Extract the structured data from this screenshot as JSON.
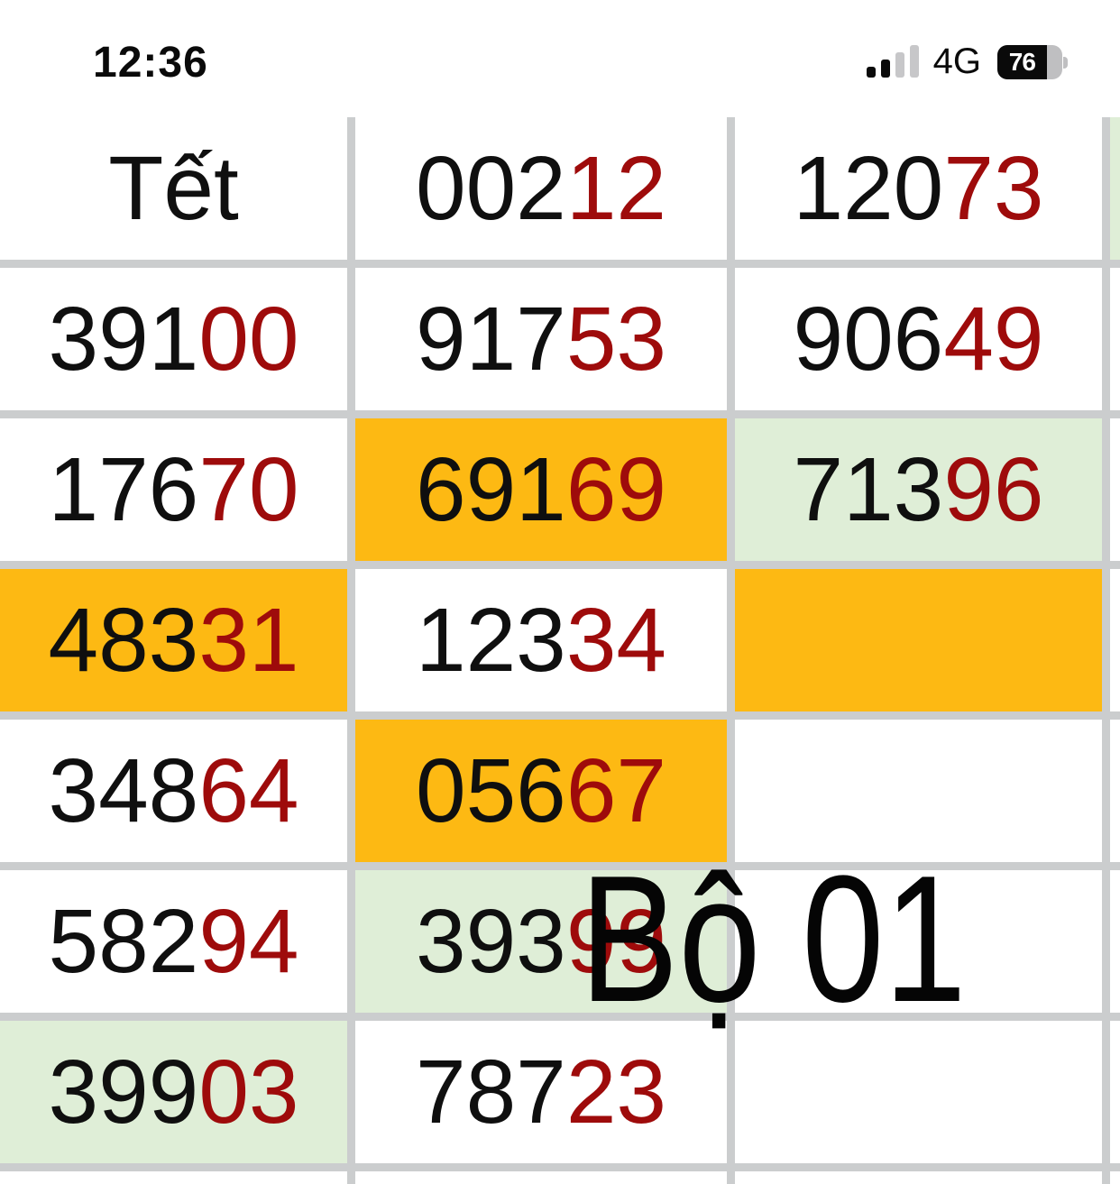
{
  "status_bar": {
    "time": "12:36",
    "network": "4G",
    "battery_percent": "76"
  },
  "overlay": {
    "text": "Bộ 01"
  },
  "colors": {
    "highlight_orange": "#fdb913",
    "highlight_green": "#dfeed7",
    "digit_black": "#0f0f0f",
    "digit_red": "#9e0b0b",
    "grid_line": "#cbcdce"
  },
  "table": {
    "columns": 4,
    "note_pattern": "each entry = first 3 digits black + last 2 digits dark red",
    "rows": [
      {
        "cells": [
          {
            "black": "Tết",
            "red": "",
            "bg": "white"
          },
          {
            "black": "002",
            "red": "12",
            "bg": "white"
          },
          {
            "black": "120",
            "red": "73",
            "bg": "white"
          },
          {
            "black": "",
            "red": "",
            "bg": "green"
          }
        ]
      },
      {
        "cells": [
          {
            "black": "391",
            "red": "00",
            "bg": "white"
          },
          {
            "black": "917",
            "red": "53",
            "bg": "white"
          },
          {
            "black": "906",
            "red": "49",
            "bg": "white"
          },
          {
            "black": "",
            "red": "",
            "bg": "white"
          }
        ]
      },
      {
        "cells": [
          {
            "black": "176",
            "red": "70",
            "bg": "white"
          },
          {
            "black": "691",
            "red": "69",
            "bg": "orange"
          },
          {
            "black": "713",
            "red": "96",
            "bg": "green"
          },
          {
            "black": "",
            "red": "",
            "bg": "white"
          }
        ]
      },
      {
        "cells": [
          {
            "black": "483",
            "red": "31",
            "bg": "orange"
          },
          {
            "black": "123",
            "red": "34",
            "bg": "white"
          },
          {
            "black": "",
            "red": "",
            "bg": "orange"
          },
          {
            "black": "",
            "red": "",
            "bg": "white"
          }
        ]
      },
      {
        "cells": [
          {
            "black": "348",
            "red": "64",
            "bg": "white"
          },
          {
            "black": "056",
            "red": "67",
            "bg": "orange"
          },
          {
            "black": "",
            "red": "",
            "bg": "white"
          },
          {
            "black": "",
            "red": "",
            "bg": "white"
          }
        ]
      },
      {
        "cells": [
          {
            "black": "582",
            "red": "94",
            "bg": "white"
          },
          {
            "black": "393",
            "red": "99",
            "bg": "green"
          },
          {
            "black": "",
            "red": "",
            "bg": "white"
          },
          {
            "black": "",
            "red": "",
            "bg": "white"
          }
        ]
      },
      {
        "cells": [
          {
            "black": "399",
            "red": "03",
            "bg": "green"
          },
          {
            "black": "787",
            "red": "23",
            "bg": "white"
          },
          {
            "black": "",
            "red": "",
            "bg": "white"
          },
          {
            "black": "",
            "red": "",
            "bg": "white"
          }
        ]
      },
      {
        "cells": [
          {
            "black": "",
            "red": "",
            "bg": "white"
          },
          {
            "black": "",
            "red": "",
            "bg": "white"
          },
          {
            "black": "",
            "red": "",
            "bg": "white"
          },
          {
            "black": "",
            "red": "",
            "bg": "white"
          }
        ]
      }
    ]
  }
}
